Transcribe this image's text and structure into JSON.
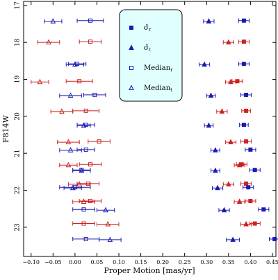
{
  "chart_data": {
    "type": "scatter",
    "x_label": "Proper Motion [mas/yr]",
    "y_label": "F814W",
    "xlim": [
      -0.117,
      0.458
    ],
    "ylim": [
      23.79,
      16.89
    ],
    "xticks": [
      {
        "value": -0.1,
        "label": "−0.10"
      },
      {
        "value": -0.05,
        "label": "−0.05"
      },
      {
        "value": 0.0,
        "label": "0.00"
      },
      {
        "value": 0.05,
        "label": "0.05"
      },
      {
        "value": 0.1,
        "label": "0.10"
      },
      {
        "value": 0.15,
        "label": "0.15"
      },
      {
        "value": 0.2,
        "label": "0.20"
      },
      {
        "value": 0.25,
        "label": "0.25"
      },
      {
        "value": 0.3,
        "label": "0.30"
      },
      {
        "value": 0.35,
        "label": "0.35"
      },
      {
        "value": 0.4,
        "label": "0.40"
      },
      {
        "value": 0.45,
        "label": "0.45"
      }
    ],
    "yticks": [
      17,
      18,
      19,
      20,
      21,
      22,
      23
    ],
    "y": [
      17.41,
      17.98,
      18.58,
      19.05,
      19.42,
      19.85,
      20.23,
      20.68,
      20.9,
      21.3,
      21.45,
      21.82,
      21.92,
      22.29,
      22.52,
      22.9,
      23.32
    ],
    "bin_colors": [
      "#1a1ab4",
      "#cc2222",
      "#1a1ab4",
      "#cc2222",
      "#1a1ab4",
      "#cc2222",
      "#1a1ab4",
      "#cc2222",
      "#1a1ab4",
      "#cc2222",
      "#1a1ab4",
      "#cc2222",
      "#1a1ab4",
      "#cc2222",
      "#1a1ab4",
      "#cc2222",
      "#1a1ab4"
    ],
    "series": [
      {
        "name": "σ̂",
        "subscript": "r",
        "marker": "square",
        "filled": true,
        "values": [
          0.385,
          0.385,
          0.385,
          0.37,
          0.39,
          0.39,
          0.385,
          0.39,
          0.4,
          0.38,
          0.41,
          0.39,
          0.395,
          0.4,
          0.43,
          0.41,
          0.455
        ],
        "errors": [
          0.012,
          0.012,
          0.012,
          0.012,
          0.012,
          0.01,
          0.01,
          0.012,
          0.012,
          0.012,
          0.012,
          0.012,
          0.012,
          0.012,
          0.012,
          0.012,
          0.012
        ]
      },
      {
        "name": "σ̂",
        "subscript": "t",
        "marker": "triangle",
        "filled": true,
        "values": [
          0.305,
          0.35,
          0.295,
          0.355,
          0.31,
          0.335,
          0.305,
          0.355,
          0.32,
          0.375,
          0.32,
          0.35,
          0.325,
          0.375,
          0.34,
          0.39,
          0.36
        ],
        "errors": [
          0.012,
          0.012,
          0.012,
          0.012,
          0.01,
          0.012,
          0.01,
          0.012,
          0.01,
          0.012,
          0.01,
          0.012,
          0.012,
          0.012,
          0.012,
          0.012,
          0.015
        ]
      },
      {
        "name": "Median",
        "subscript": "r",
        "marker": "square",
        "filled": false,
        "values": [
          0.035,
          0.035,
          0.005,
          0.01,
          0.045,
          0.025,
          0.025,
          0.055,
          0.025,
          0.035,
          0.015,
          0.03,
          0.0,
          0.035,
          0.02,
          0.02,
          0.025
        ],
        "errors": [
          0.03,
          0.025,
          0.02,
          0.03,
          0.025,
          0.03,
          0.02,
          0.025,
          0.02,
          0.025,
          0.02,
          0.025,
          0.035,
          0.025,
          0.025,
          0.025,
          0.03
        ]
      },
      {
        "name": "Median",
        "subscript": "t",
        "marker": "triangle",
        "filled": false,
        "values": [
          -0.05,
          -0.06,
          0.0,
          -0.08,
          -0.01,
          -0.03,
          0.02,
          -0.015,
          -0.01,
          -0.015,
          0.015,
          0.01,
          -0.005,
          0.02,
          0.07,
          0.075,
          0.08
        ],
        "errors": [
          0.02,
          0.025,
          0.02,
          0.02,
          0.025,
          0.025,
          0.015,
          0.025,
          0.025,
          0.02,
          0.02,
          0.025,
          0.02,
          0.025,
          0.02,
          0.025,
          0.025
        ]
      }
    ]
  }
}
